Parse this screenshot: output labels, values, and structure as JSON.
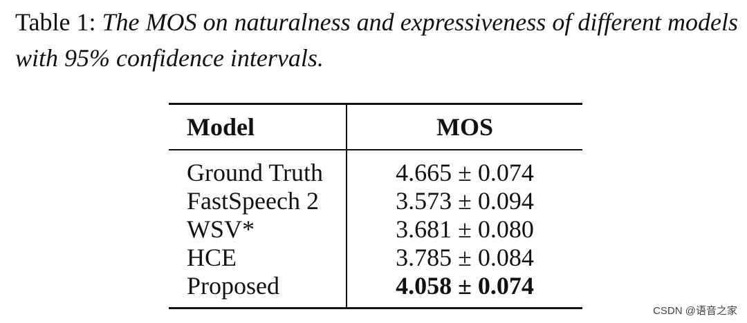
{
  "caption": {
    "label": "Table 1:",
    "text": "The MOS on naturalness and expressiveness of different models with 95% confidence intervals."
  },
  "table": {
    "headers": [
      "Model",
      "MOS"
    ],
    "rows": [
      {
        "model": "Ground Truth",
        "mos": "4.665 ± 0.074",
        "bold": false
      },
      {
        "model": "FastSpeech 2",
        "mos": "3.573 ± 0.094",
        "bold": false
      },
      {
        "model": "WSV*",
        "mos": "3.681 ± 0.080",
        "bold": false
      },
      {
        "model": "HCE",
        "mos": "3.785 ± 0.084",
        "bold": false
      },
      {
        "model": "Proposed",
        "mos": "4.058 ± 0.074",
        "bold": true
      }
    ]
  },
  "watermark": "CSDN @语音之家"
}
